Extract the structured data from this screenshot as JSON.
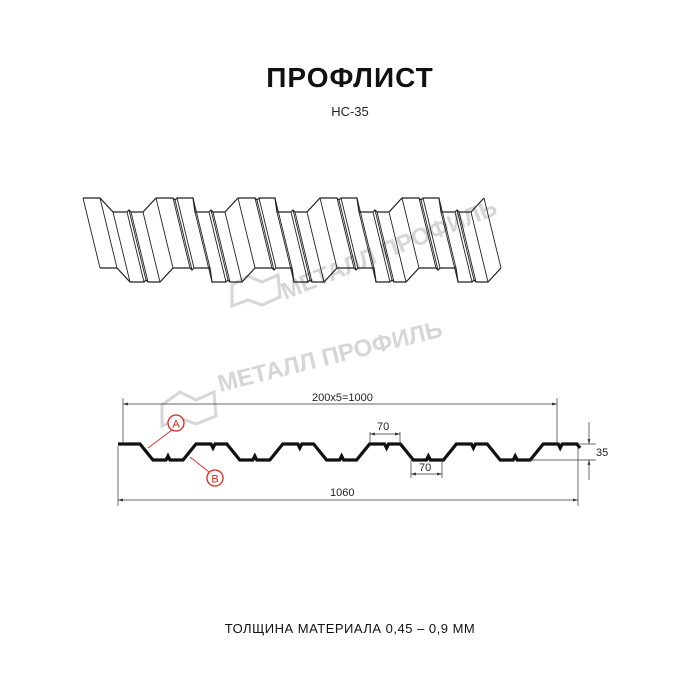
{
  "title": "ПРОФЛИСТ",
  "subtitle": "НС-35",
  "footer": "ТОЛЩИНА МАТЕРИАЛА 0,45 – 0,9 ММ",
  "watermark": "МЕТАЛЛ ПРОФИЛЬ",
  "dimensions": {
    "pitch_total": "200x5=1000",
    "total_width": "1060",
    "top_flat": "70",
    "bottom_flat": "70",
    "height": "35"
  },
  "callouts": {
    "a": "A",
    "b": "B"
  },
  "colors": {
    "profile": "#111111",
    "callout": "#e0201b",
    "watermark": "#d6d6d6"
  }
}
